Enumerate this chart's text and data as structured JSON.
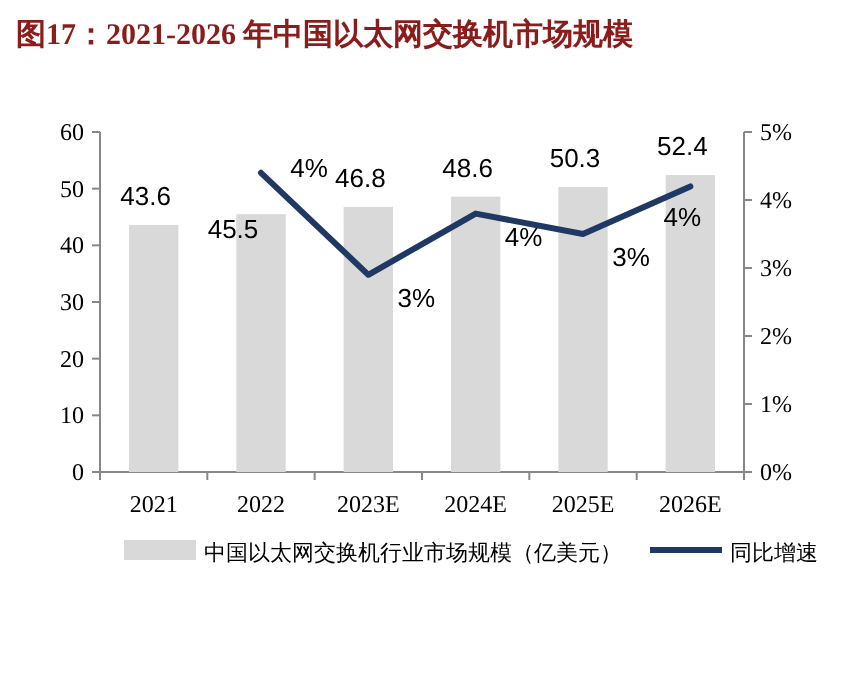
{
  "chart_data": {
    "type": "bar",
    "title": "图17：2021-2026 年中国以太网交换机市场规模",
    "categories": [
      "2021",
      "2022",
      "2023E",
      "2024E",
      "2025E",
      "2026E"
    ],
    "series": [
      {
        "name": "中国以太网交换机行业市场规模（亿美元）",
        "color": "#d9d9d9",
        "values": [
          43.6,
          45.5,
          46.8,
          48.6,
          50.3,
          52.4
        ],
        "data_labels": true
      },
      {
        "name": "同比增速",
        "type": "line",
        "axis": "y2",
        "color": "#203864",
        "values": [
          null,
          4.4,
          2.9,
          3.8,
          3.5,
          4.2
        ],
        "value_labels": [
          null,
          "4%",
          "3%",
          "4%",
          "3%",
          "4%"
        ]
      }
    ],
    "ylim": [
      0,
      60
    ],
    "yticks": [
      0,
      10,
      20,
      30,
      40,
      50,
      60
    ],
    "y2lim": [
      0,
      5
    ],
    "y2ticks": [
      {
        "value": 0,
        "label": "0%"
      },
      {
        "value": 1,
        "label": "1%"
      },
      {
        "value": 2,
        "label": "2%"
      },
      {
        "value": 3,
        "label": "3%"
      },
      {
        "value": 4,
        "label": "4%"
      },
      {
        "value": 5,
        "label": "5%"
      }
    ],
    "legend": "bottom",
    "grid": false
  }
}
